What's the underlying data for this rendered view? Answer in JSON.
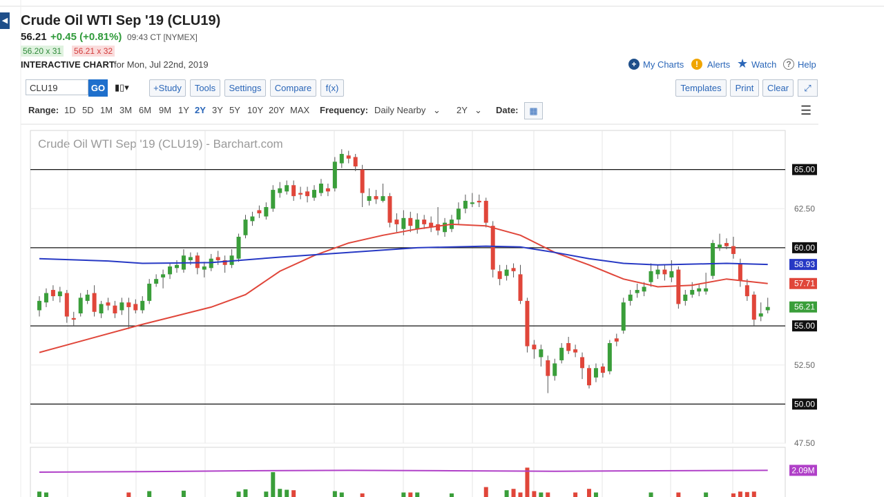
{
  "header": {
    "title": "Crude Oil WTI Sep '19 (CLU19)",
    "last": "56.21",
    "change": "+0.45 (+0.81%)",
    "time": "09:43 CT [NYMEX]",
    "bid": "56.20 x 31",
    "ask": "56.21 x 32",
    "label": "INTERACTIVE CHART",
    "date": "for Mon, Jul 22nd, 2019",
    "links": [
      "My Charts",
      "Alerts",
      "Watch",
      "Help"
    ]
  },
  "toolbar": {
    "symbol": "CLU19",
    "go": "GO",
    "left_buttons": [
      "+Study",
      "Tools",
      "Settings",
      "Compare",
      "f(x)"
    ],
    "right_buttons": [
      "Templates",
      "Print",
      "Clear"
    ]
  },
  "range_bar": {
    "range_label": "Range:",
    "ranges": [
      "1D",
      "5D",
      "1M",
      "3M",
      "6M",
      "9M",
      "1Y",
      "2Y",
      "3Y",
      "5Y",
      "10Y",
      "20Y",
      "MAX"
    ],
    "frequency_label": "Frequency:",
    "frequency": "Daily Nearby",
    "period": "2Y",
    "date_label": "Date:"
  },
  "chart_data": {
    "type": "candlestick",
    "title": "Crude Oil WTI Sep '19 (CLU19) - Barchart.com",
    "up_color": "#3a9e3a",
    "down_color": "#e0463a",
    "ohlc": [
      [
        56.0,
        56.9,
        55.6,
        56.6
      ],
      [
        56.5,
        57.4,
        56.2,
        57.1
      ],
      [
        57.3,
        57.6,
        56.6,
        56.9
      ],
      [
        56.9,
        57.5,
        56.5,
        57.2
      ],
      [
        57.1,
        57.3,
        55.2,
        55.6
      ],
      [
        55.5,
        55.9,
        55.0,
        55.4
      ],
      [
        55.8,
        57.1,
        55.6,
        56.8
      ],
      [
        56.6,
        57.3,
        56.4,
        57.0
      ],
      [
        57.1,
        57.6,
        55.6,
        55.9
      ],
      [
        55.8,
        56.6,
        55.5,
        56.4
      ],
      [
        56.5,
        56.8,
        56.0,
        56.3
      ],
      [
        56.3,
        56.6,
        55.5,
        55.8
      ],
      [
        56.0,
        56.8,
        55.7,
        56.5
      ],
      [
        56.5,
        56.8,
        54.8,
        56.2
      ],
      [
        56.4,
        56.7,
        55.8,
        56.0
      ],
      [
        56.0,
        56.9,
        55.8,
        56.6
      ],
      [
        56.6,
        58.0,
        56.4,
        57.7
      ],
      [
        57.7,
        58.3,
        57.5,
        58.0
      ],
      [
        58.1,
        58.6,
        57.4,
        58.3
      ],
      [
        58.3,
        59.0,
        58.0,
        58.8
      ],
      [
        58.7,
        59.2,
        58.4,
        58.9
      ],
      [
        58.6,
        59.9,
        58.4,
        59.5
      ],
      [
        59.2,
        59.7,
        58.9,
        59.4
      ],
      [
        59.5,
        59.7,
        58.3,
        58.7
      ],
      [
        58.6,
        59.1,
        58.1,
        58.8
      ],
      [
        58.7,
        59.6,
        58.5,
        59.3
      ],
      [
        59.4,
        59.8,
        58.9,
        59.2
      ],
      [
        59.2,
        59.5,
        58.4,
        58.9
      ],
      [
        58.9,
        59.9,
        58.7,
        59.5
      ],
      [
        59.3,
        60.9,
        59.1,
        60.7
      ],
      [
        60.8,
        62.1,
        60.6,
        61.8
      ],
      [
        61.7,
        62.3,
        61.4,
        62.0
      ],
      [
        62.4,
        62.7,
        61.9,
        62.2
      ],
      [
        62.0,
        62.9,
        61.8,
        62.6
      ],
      [
        62.5,
        64.0,
        62.3,
        63.7
      ],
      [
        63.5,
        64.2,
        63.2,
        63.8
      ],
      [
        63.6,
        64.3,
        63.4,
        64.0
      ],
      [
        64.0,
        64.3,
        63.0,
        63.3
      ],
      [
        63.5,
        63.9,
        63.1,
        63.4
      ],
      [
        63.6,
        63.9,
        62.9,
        63.3
      ],
      [
        63.2,
        64.0,
        63.0,
        63.7
      ],
      [
        63.5,
        64.4,
        63.3,
        64.1
      ],
      [
        63.8,
        64.1,
        63.3,
        63.6
      ],
      [
        63.8,
        65.8,
        63.6,
        65.5
      ],
      [
        65.4,
        66.3,
        65.1,
        66.0
      ],
      [
        65.9,
        66.2,
        65.4,
        65.7
      ],
      [
        65.8,
        66.0,
        64.9,
        65.2
      ],
      [
        65.0,
        65.3,
        62.6,
        63.5
      ],
      [
        63.0,
        63.8,
        62.7,
        63.3
      ],
      [
        63.3,
        63.7,
        62.8,
        63.1
      ],
      [
        63.0,
        64.1,
        62.9,
        63.3
      ],
      [
        63.3,
        63.5,
        61.3,
        61.6
      ],
      [
        61.8,
        62.2,
        61.0,
        61.5
      ],
      [
        61.2,
        62.4,
        60.8,
        61.9
      ],
      [
        61.9,
        62.3,
        61.0,
        61.4
      ],
      [
        61.2,
        62.2,
        60.9,
        61.8
      ],
      [
        61.8,
        62.1,
        61.2,
        61.5
      ],
      [
        61.6,
        62.0,
        61.0,
        61.3
      ],
      [
        61.5,
        62.6,
        60.8,
        61.1
      ],
      [
        61.0,
        61.9,
        60.7,
        61.6
      ],
      [
        61.2,
        62.1,
        61.0,
        61.8
      ],
      [
        61.8,
        62.9,
        61.5,
        62.5
      ],
      [
        62.5,
        63.4,
        62.2,
        63.0
      ],
      [
        62.8,
        63.5,
        62.6,
        62.9
      ],
      [
        63.0,
        63.4,
        62.6,
        62.9
      ],
      [
        63.0,
        63.2,
        61.3,
        61.6
      ],
      [
        61.4,
        61.7,
        58.1,
        58.6
      ],
      [
        58.5,
        58.9,
        57.6,
        58.0
      ],
      [
        58.2,
        58.9,
        57.9,
        58.6
      ],
      [
        58.7,
        59.0,
        58.1,
        58.5
      ],
      [
        58.3,
        58.9,
        56.4,
        56.6
      ],
      [
        56.6,
        56.8,
        53.3,
        53.7
      ],
      [
        53.8,
        54.1,
        52.9,
        53.5
      ],
      [
        53.0,
        53.8,
        52.4,
        53.5
      ],
      [
        52.8,
        53.1,
        50.7,
        51.8
      ],
      [
        51.8,
        52.9,
        51.5,
        52.6
      ],
      [
        52.8,
        53.9,
        52.6,
        53.6
      ],
      [
        53.9,
        54.3,
        53.2,
        53.4
      ],
      [
        53.5,
        53.8,
        53.0,
        53.3
      ],
      [
        53.0,
        53.3,
        51.6,
        52.3
      ],
      [
        52.3,
        52.5,
        51.0,
        51.2
      ],
      [
        51.7,
        52.6,
        51.4,
        52.3
      ],
      [
        52.4,
        52.6,
        51.7,
        52.0
      ],
      [
        52.1,
        54.1,
        51.9,
        53.9
      ],
      [
        54.2,
        54.5,
        53.7,
        54.0
      ],
      [
        54.7,
        56.8,
        54.5,
        56.5
      ],
      [
        56.6,
        57.3,
        56.3,
        57.0
      ],
      [
        57.1,
        57.7,
        56.8,
        57.3
      ],
      [
        57.2,
        57.8,
        56.9,
        57.5
      ],
      [
        57.8,
        59.0,
        57.5,
        58.5
      ],
      [
        58.3,
        58.9,
        58.0,
        58.6
      ],
      [
        58.6,
        58.9,
        57.9,
        58.3
      ],
      [
        58.1,
        59.2,
        57.8,
        58.5
      ],
      [
        58.6,
        58.8,
        56.1,
        56.4
      ],
      [
        56.6,
        57.3,
        56.3,
        57.0
      ],
      [
        57.0,
        57.8,
        56.8,
        57.3
      ],
      [
        57.2,
        57.7,
        56.9,
        57.4
      ],
      [
        57.2,
        58.4,
        57.0,
        57.4
      ],
      [
        58.2,
        60.5,
        58.0,
        60.3
      ],
      [
        60.0,
        60.9,
        59.8,
        60.2
      ],
      [
        60.3,
        60.6,
        59.9,
        60.1
      ],
      [
        60.1,
        60.7,
        59.3,
        59.6
      ],
      [
        59.0,
        59.3,
        57.5,
        57.9
      ],
      [
        57.6,
        58.0,
        56.6,
        56.9
      ],
      [
        57.0,
        57.2,
        55.0,
        55.4
      ],
      [
        55.6,
        56.5,
        55.3,
        55.8
      ],
      [
        56.0,
        56.8,
        55.8,
        56.21
      ]
    ],
    "ylim": [
      47.5,
      67.5
    ],
    "yticks": [
      {
        "value": 47.5,
        "label": "47.50"
      },
      {
        "value": 50,
        "label": "50.00"
      },
      {
        "value": 52.5,
        "label": "52.50"
      },
      {
        "value": 55,
        "label": "55.00"
      },
      {
        "value": 60,
        "label": "60.00"
      },
      {
        "value": 62.5,
        "label": "62.50"
      },
      {
        "value": 65,
        "label": "65.00"
      }
    ],
    "hlines": [
      65,
      60,
      55,
      50
    ],
    "series": [
      {
        "color": "#e0463a",
        "x": [
          0,
          15,
          25,
          30,
          35,
          40,
          45,
          50,
          55,
          60,
          65,
          70,
          75,
          80,
          85,
          90,
          95,
          100,
          106
        ],
        "values": [
          53.3,
          55.1,
          56.2,
          57.0,
          58.5,
          59.5,
          60.3,
          60.8,
          61.2,
          61.5,
          61.4,
          60.8,
          59.7,
          58.9,
          58.0,
          57.5,
          57.6,
          58.0,
          57.71
        ]
      },
      {
        "color": "#2638c4",
        "x": [
          0,
          10,
          15,
          25,
          35,
          45,
          55,
          65,
          70,
          75,
          80,
          85,
          90,
          100,
          106
        ],
        "values": [
          59.3,
          59.15,
          59.0,
          59.05,
          59.4,
          59.7,
          60.0,
          60.1,
          60.05,
          59.7,
          59.3,
          59.0,
          58.9,
          59.0,
          58.93
        ]
      }
    ],
    "price_flags": [
      {
        "value": 58.93,
        "color": "#2638c4"
      },
      {
        "value": 57.71,
        "color": "#e0463a"
      },
      {
        "value": 56.21,
        "color": "#3a9e3a"
      }
    ],
    "volume": {
      "vlim": [
        1.5,
        2.6
      ],
      "x": [
        0,
        1,
        13,
        16,
        21,
        29,
        30,
        33,
        34,
        35,
        36,
        37,
        43,
        44,
        47,
        53,
        54,
        55,
        60,
        65,
        68,
        69,
        70,
        71,
        72,
        73,
        74,
        78,
        80,
        81,
        89,
        93,
        97,
        101,
        102,
        103,
        104
      ],
      "values": [
        1.62,
        1.6,
        1.6,
        1.63,
        1.64,
        1.62,
        1.67,
        1.62,
        2.05,
        1.68,
        1.66,
        1.65,
        1.63,
        1.6,
        1.58,
        1.6,
        1.6,
        1.6,
        1.58,
        1.72,
        1.65,
        1.68,
        1.6,
        2.15,
        1.63,
        1.6,
        1.6,
        1.6,
        1.68,
        1.6,
        1.6,
        1.6,
        1.6,
        1.58,
        1.62,
        1.61,
        1.62
      ],
      "avg": {
        "color": "#b040c8",
        "x": [
          0,
          15,
          30,
          45,
          60,
          75,
          90,
          106
        ],
        "values": [
          2.05,
          2.06,
          2.08,
          2.09,
          2.08,
          2.07,
          2.08,
          2.09
        ]
      },
      "flag": {
        "value": 2.09,
        "label": "2.09M"
      }
    }
  }
}
